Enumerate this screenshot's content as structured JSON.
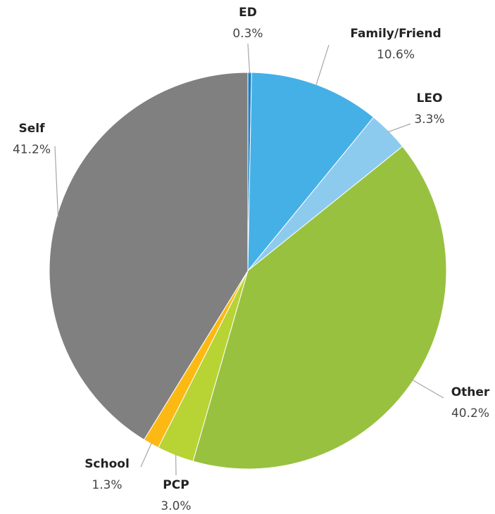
{
  "chart_data": {
    "type": "pie",
    "categories": [
      "ED",
      "Family/Friend",
      "LEO",
      "Other",
      "PCP",
      "School",
      "Self"
    ],
    "values": [
      0.3,
      10.6,
      3.3,
      40.2,
      3.0,
      1.3,
      41.2
    ],
    "value_labels": [
      "0.3%",
      "10.6%",
      "3.3%",
      "40.2%",
      "3.0%",
      "1.3%",
      "41.2%"
    ],
    "colors": [
      "#1f7fc0",
      "#45b0e6",
      "#8dcbee",
      "#99c140",
      "#b8d334",
      "#fdb913",
      "#808080"
    ]
  }
}
